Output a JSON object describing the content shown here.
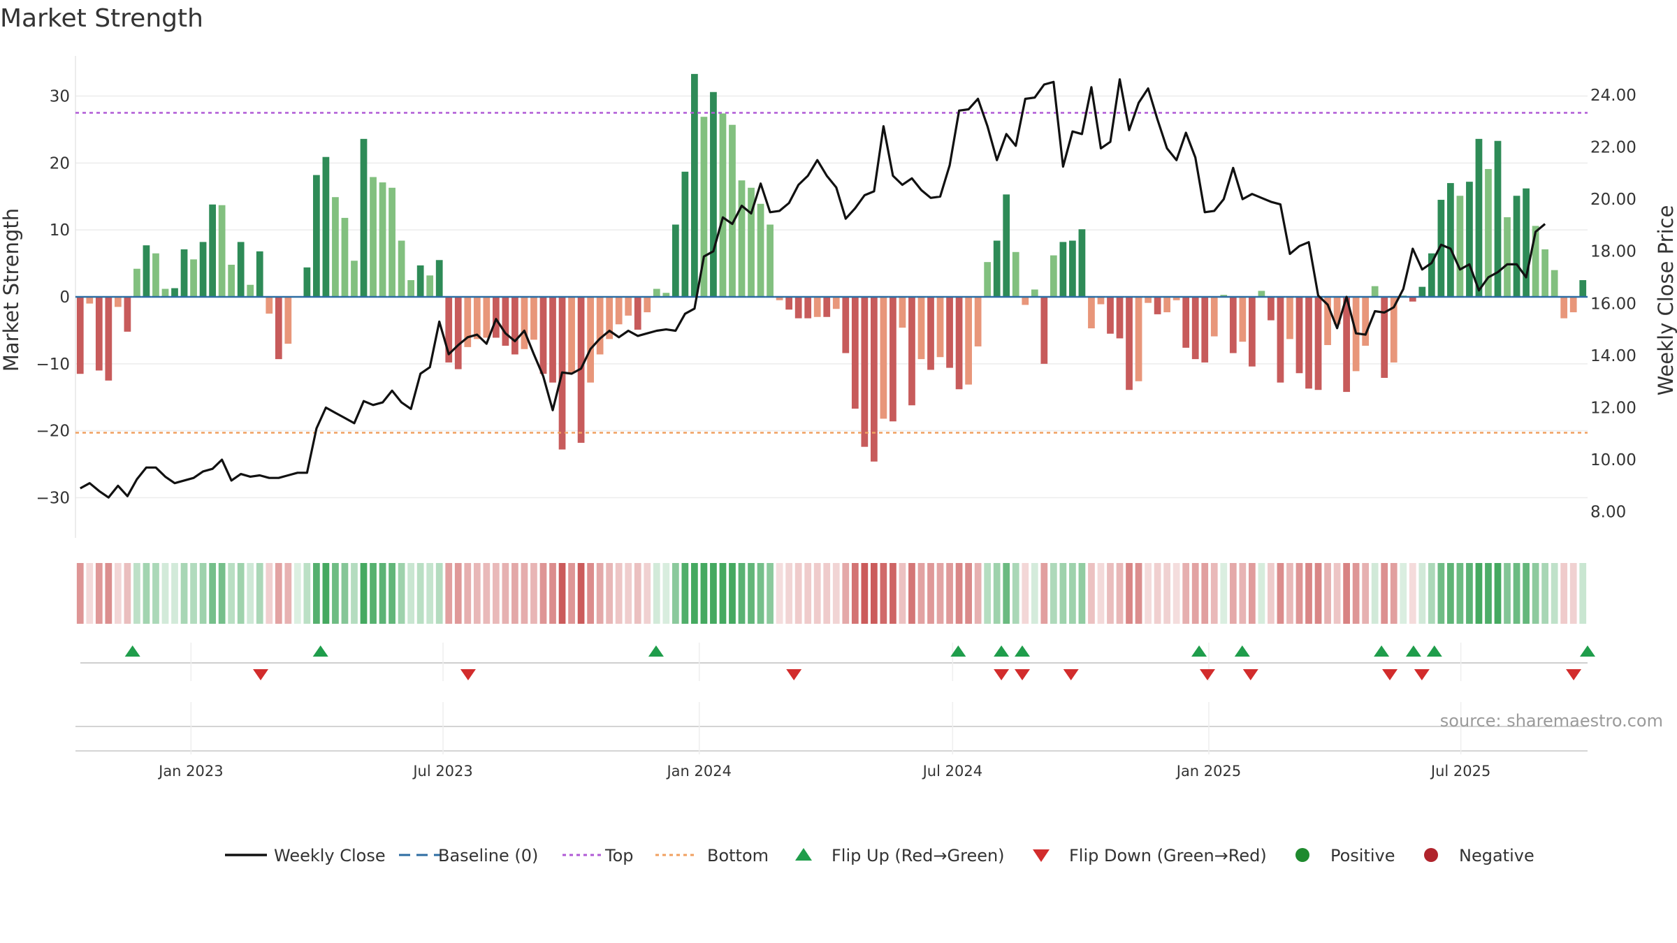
{
  "title": "Market Strength",
  "source": "source: sharemaestro.com",
  "colors": {
    "pos_strong": "#2e8b57",
    "pos_light": "#82c07f",
    "neg_strong": "#c75b5b",
    "neg_light": "#e8967a",
    "close": "#111111",
    "baseline": "#2d6ca2",
    "top": "#b05ad6",
    "bottom": "#f0a060",
    "flip_up": "#1f9d4b",
    "flip_down": "#d22c2c",
    "positive": "#1e8a2e",
    "negative": "#b0242c",
    "grid": "#ececec"
  },
  "chart_data": {
    "type": "bar+line",
    "title": "Market Strength",
    "ylabel": "Market Strength",
    "y2label": "Weekly Close Price",
    "ylim": [
      -36,
      36
    ],
    "y2lim": [
      7.0,
      25.5
    ],
    "yticks": [
      30,
      20,
      10,
      0,
      -10,
      -20,
      -30
    ],
    "yticklabels": [
      "30",
      "20",
      "10",
      "0",
      "−10",
      "−20",
      "−30"
    ],
    "y2ticks": [
      24,
      22,
      20,
      18,
      16,
      14,
      12,
      10,
      8
    ],
    "y2ticklabels": [
      "24.00",
      "22.00",
      "20.00",
      "18.00",
      "16.00",
      "14.00",
      "12.00",
      "10.00",
      "8.00"
    ],
    "top_line": 27.5,
    "bottom_line": -20.3,
    "x_start": "2022-10-10",
    "x_end": "2025-09-30",
    "xticks": [
      "2023-01-01",
      "2023-07-01",
      "2024-01-01",
      "2024-07-01",
      "2025-01-01",
      "2025-07-01"
    ],
    "xticklabels": [
      "Jan 2023",
      "Jul 2023",
      "Jan 2024",
      "Jul 2024",
      "Jan 2025",
      "Jul 2025"
    ],
    "strength": [
      -11.5,
      -1,
      -11,
      -12.5,
      -1.5,
      -5.2,
      4.2,
      7.7,
      6.5,
      1.2,
      1.3,
      7.1,
      5.6,
      8.2,
      13.8,
      13.7,
      4.8,
      8.2,
      1.8,
      6.8,
      -2.5,
      -9.3,
      -7,
      0,
      4.4,
      18.2,
      20.9,
      14.9,
      11.8,
      5.4,
      23.6,
      17.9,
      17.1,
      16.3,
      8.4,
      2.5,
      4.7,
      3.2,
      5.5,
      -9.8,
      -10.8,
      -7.5,
      -6.3,
      -6.1,
      -6.1,
      -7.3,
      -8.6,
      -7.8,
      -6.4,
      -11.5,
      -12.8,
      -22.8,
      -11.3,
      -21.8,
      -12.8,
      -8.6,
      -6.3,
      -4.1,
      -2.8,
      -4.9,
      -2.3,
      1.2,
      0.6,
      10.8,
      18.7,
      33.3,
      26.9,
      30.6,
      27.4,
      25.7,
      17.4,
      16.3,
      13.9,
      10.8,
      -0.5,
      -1.9,
      -3.2,
      -3.2,
      -3,
      -3,
      -1.8,
      -8.4,
      -16.7,
      -22.4,
      -24.6,
      -18.2,
      -18.6,
      -4.6,
      -16.2,
      -9.3,
      -10.9,
      -9,
      -10.6,
      -13.8,
      -13.1,
      -7.4,
      5.2,
      8.4,
      15.3,
      6.7,
      -1.2,
      1.1,
      -10,
      6.2,
      8.2,
      8.4,
      10.1,
      -4.7,
      -1.1,
      -5.5,
      -6.2,
      -13.9,
      -12.6,
      -0.9,
      -2.6,
      -2.3,
      -0.5,
      -7.6,
      -9.3,
      -9.8,
      -5.9,
      0.3,
      -8.4,
      -6.7,
      -10.4,
      0.9,
      -3.5,
      -12.8,
      -6.3,
      -11.4,
      -13.7,
      -13.9,
      -7.2,
      -4.1,
      -14.2,
      -11.1,
      -7.3,
      1.6,
      -12.1,
      -9.8,
      0.2,
      -0.7,
      1.5,
      6.5,
      14.5,
      17,
      15.1,
      17.2,
      23.6,
      19.1,
      23.3,
      11.9,
      15.1,
      16.2,
      10.6,
      7.1,
      4,
      -3.2,
      -2.3,
      2.5
    ],
    "close": [
      8.9,
      9.1,
      8.8,
      8.55,
      9.0,
      8.6,
      9.25,
      9.7,
      9.7,
      9.35,
      9.1,
      9.2,
      9.3,
      9.55,
      9.65,
      10.0,
      9.2,
      9.45,
      9.35,
      9.4,
      9.3,
      9.3,
      9.4,
      9.5,
      9.5,
      11.2,
      12.0,
      11.8,
      11.6,
      11.4,
      12.25,
      12.1,
      12.2,
      12.65,
      12.2,
      11.95,
      13.3,
      13.55,
      15.3,
      14.05,
      14.4,
      14.7,
      14.8,
      14.45,
      15.4,
      14.85,
      14.55,
      14.95,
      14.05,
      13.2,
      11.9,
      13.35,
      13.3,
      13.5,
      14.25,
      14.65,
      14.95,
      14.7,
      14.95,
      14.75,
      14.85,
      14.95,
      15.0,
      14.95,
      15.6,
      15.8,
      17.8,
      18.0,
      19.3,
      19.05,
      19.75,
      19.45,
      20.6,
      19.5,
      19.55,
      19.85,
      20.55,
      20.9,
      21.5,
      20.9,
      20.45,
      19.25,
      19.65,
      20.15,
      20.3,
      22.8,
      20.9,
      20.55,
      20.8,
      20.35,
      20.05,
      20.1,
      21.3,
      23.4,
      23.45,
      23.85,
      22.8,
      21.5,
      22.5,
      22.05,
      23.85,
      23.9,
      24.4,
      24.5,
      21.25,
      22.6,
      22.5,
      24.3,
      21.95,
      22.2,
      24.6,
      22.65,
      23.7,
      24.25,
      23.05,
      21.95,
      21.5,
      22.55,
      21.6,
      19.5,
      19.55,
      20.0,
      21.2,
      20.0,
      20.2,
      20.05,
      19.9,
      19.8,
      17.9,
      18.2,
      18.35,
      16.3,
      15.95,
      15.05,
      16.25,
      14.85,
      14.8,
      15.7,
      15.65,
      15.85,
      16.55,
      18.1,
      17.3,
      17.55,
      18.25,
      18.1,
      17.3,
      17.5,
      16.5,
      17.0,
      17.2,
      17.5,
      17.5,
      17.0,
      18.75,
      19.05
    ],
    "flip_up_x": [
      "2022-11-20",
      "2023-04-04",
      "2023-12-01",
      "2024-07-05",
      "2024-08-05",
      "2024-08-20",
      "2024-12-25",
      "2025-01-25",
      "2025-05-05",
      "2025-05-28",
      "2025-06-12",
      "2025-09-30"
    ],
    "flip_down_x": [
      "2023-02-20",
      "2023-07-19",
      "2024-03-09",
      "2024-08-05",
      "2024-08-20",
      "2024-09-24",
      "2024-12-31",
      "2025-01-31",
      "2025-05-11",
      "2025-06-03",
      "2025-09-20"
    ],
    "legend": [
      {
        "key": "close",
        "label": "Weekly Close"
      },
      {
        "key": "baseline",
        "label": "Baseline (0)"
      },
      {
        "key": "top",
        "label": "Top"
      },
      {
        "key": "bottom",
        "label": "Bottom"
      },
      {
        "key": "flip_up",
        "label": "Flip Up (Red→Green)"
      },
      {
        "key": "flip_down",
        "label": "Flip Down (Green→Red)"
      },
      {
        "key": "positive",
        "label": "Positive"
      },
      {
        "key": "negative",
        "label": "Negative"
      }
    ]
  }
}
